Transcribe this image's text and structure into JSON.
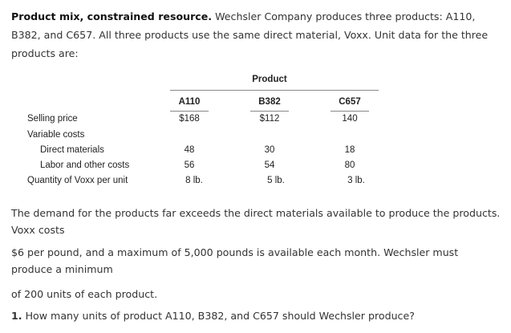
{
  "intro": {
    "title": "Product mix, constrained resource.",
    "text": "Wechsler Company produces three products: A110, B382, and C657. All three products use the same direct material, Voxx. Unit data for the three products are:"
  },
  "table": {
    "group_header": "Product",
    "columns": [
      "A110",
      "B382",
      "C657"
    ],
    "rows": [
      {
        "label": "Selling price",
        "values": [
          "$168",
          "$112",
          "140"
        ]
      },
      {
        "label": "Variable costs",
        "values": [
          "",
          "",
          ""
        ]
      },
      {
        "label": "Direct materials",
        "values": [
          "48",
          "30",
          "18"
        ]
      },
      {
        "label": "Labor and other costs",
        "values": [
          "56",
          "54",
          "80"
        ]
      },
      {
        "label": "Quantity of Voxx per unit",
        "values": [
          "8 lb.",
          "5 lb.",
          "3 lb."
        ]
      }
    ]
  },
  "paragraphs": {
    "demand": "The demand for the products far exceeds the direct materials available to produce the products. Voxx costs",
    "cost": "$6 per pound, and a maximum of 5,000 pounds is available each month. Wechsler must produce a minimum",
    "minimum": "of 200 units of each product."
  },
  "question": {
    "number": "1.",
    "text": "How many units of product A110, B382, and C657 should Wechsler produce?"
  }
}
